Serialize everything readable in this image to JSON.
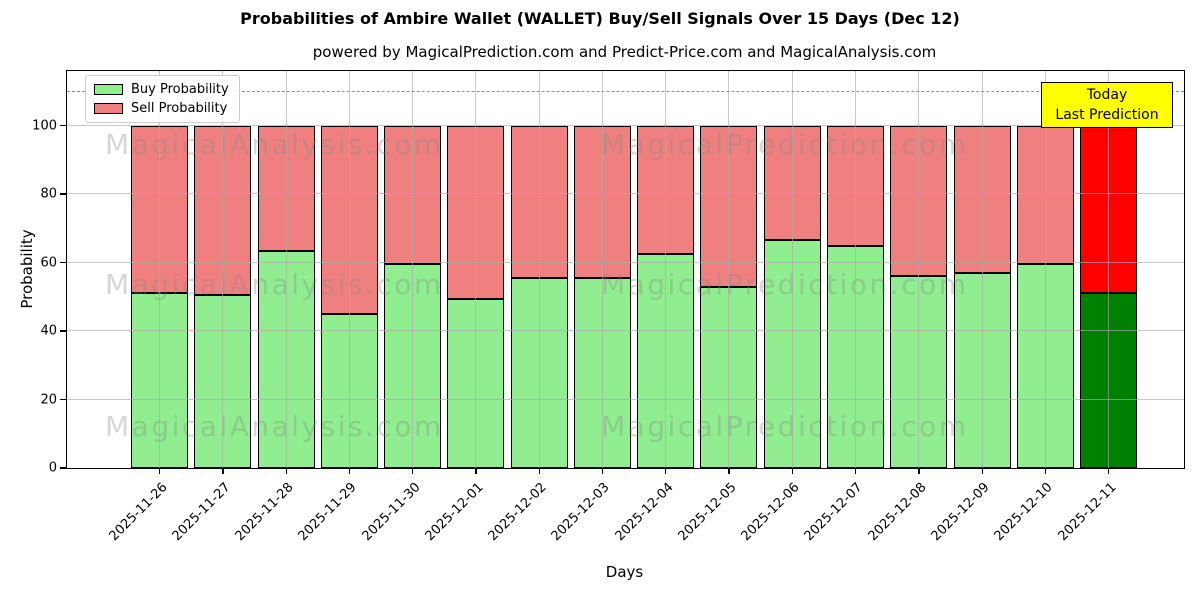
{
  "title": "Probabilities of Ambire Wallet (WALLET) Buy/Sell Signals Over 15 Days (Dec 12)",
  "subtitle": "powered by MagicalPrediction.com and Predict-Price.com and MagicalAnalysis.com",
  "legend": {
    "buy_label": "Buy Probability",
    "sell_label": "Sell Probability"
  },
  "annotation": {
    "line1": "Today",
    "line2": "Last Prediction"
  },
  "axes": {
    "x_label": "Days",
    "y_label": "Probability",
    "y_ticks": [
      0,
      20,
      40,
      60,
      80,
      100
    ]
  },
  "watermarks": {
    "left_text": "MagicalAnalysis.com",
    "right_text": "MagicalPrediction.com"
  },
  "colors": {
    "buy": "#90ee90",
    "sell": "#f08080",
    "today_buy": "#008000",
    "today_sell": "#ff0000",
    "annotation_bg": "#ffff00",
    "grid": "#aaaaaa",
    "dashed_line": "#8f8f8f"
  },
  "chart_data": {
    "type": "bar",
    "stacked": true,
    "title": "Probabilities of Ambire Wallet (WALLET) Buy/Sell Signals Over 15 Days (Dec 12)",
    "xlabel": "Days",
    "ylabel": "Probability",
    "ylim": [
      0,
      116
    ],
    "grid": true,
    "legend_position": "upper left",
    "dashed_line_y": 110,
    "categories": [
      "2025-11-26",
      "2025-11-27",
      "2025-11-28",
      "2025-11-29",
      "2025-11-30",
      "2025-12-01",
      "2025-12-02",
      "2025-12-03",
      "2025-12-04",
      "2025-12-05",
      "2025-12-06",
      "2025-12-07",
      "2025-12-08",
      "2025-12-09",
      "2025-12-10",
      "2025-12-11"
    ],
    "series": [
      {
        "name": "Buy Probability",
        "color": "#90ee90",
        "values": [
          51,
          50.5,
          63.5,
          45,
          59.5,
          49.5,
          55.5,
          55.5,
          62.5,
          53,
          66.5,
          65,
          56,
          57,
          59.5,
          51
        ]
      },
      {
        "name": "Sell Probability",
        "color": "#f08080",
        "values": [
          49,
          49.5,
          36.5,
          55,
          40.5,
          50.5,
          44.5,
          44.5,
          37.5,
          47,
          33.5,
          35,
          44,
          43,
          40.5,
          49
        ]
      }
    ],
    "today_bar": {
      "index": 15,
      "buy_color": "#008000",
      "sell_color": "#ff0000",
      "label": "Today Last Prediction"
    }
  }
}
